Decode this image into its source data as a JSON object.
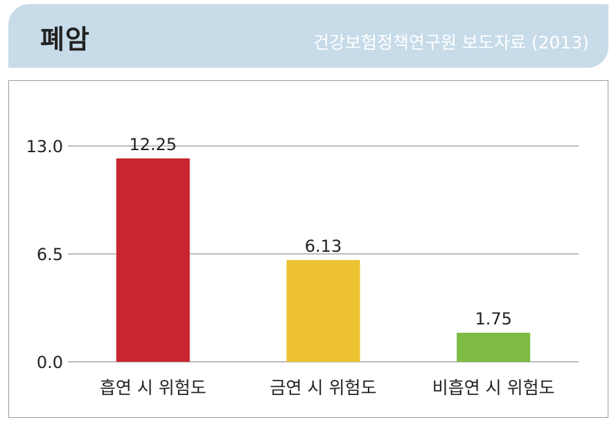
{
  "header": {
    "title": "폐암",
    "subtitle": "건강보험정책연구원 보도자료 (2013)"
  },
  "colors": {
    "header_bg": "#c7dbe9",
    "grid": "#a6a6a6",
    "bar_smoking": "#c7262f",
    "bar_quit": "#ecc132",
    "bar_nonsmoking": "#7dbb42"
  },
  "chart_data": {
    "type": "bar",
    "categories": [
      "흡연 시 위험도",
      "금연 시 위험도",
      "비흡연 시 위험도"
    ],
    "values": [
      12.25,
      6.13,
      1.75
    ],
    "value_labels": [
      "12.25",
      "6.13",
      "1.75"
    ],
    "bar_colors": [
      "#c7262f",
      "#ecc132",
      "#7dbb42"
    ],
    "yticks": [
      0.0,
      6.5,
      13.0
    ],
    "ytick_labels": [
      "0.0",
      "6.5",
      "13.0"
    ],
    "ylim": [
      0,
      13.0
    ],
    "grid": true,
    "legend": "none",
    "title": "",
    "xlabel": "",
    "ylabel": ""
  }
}
